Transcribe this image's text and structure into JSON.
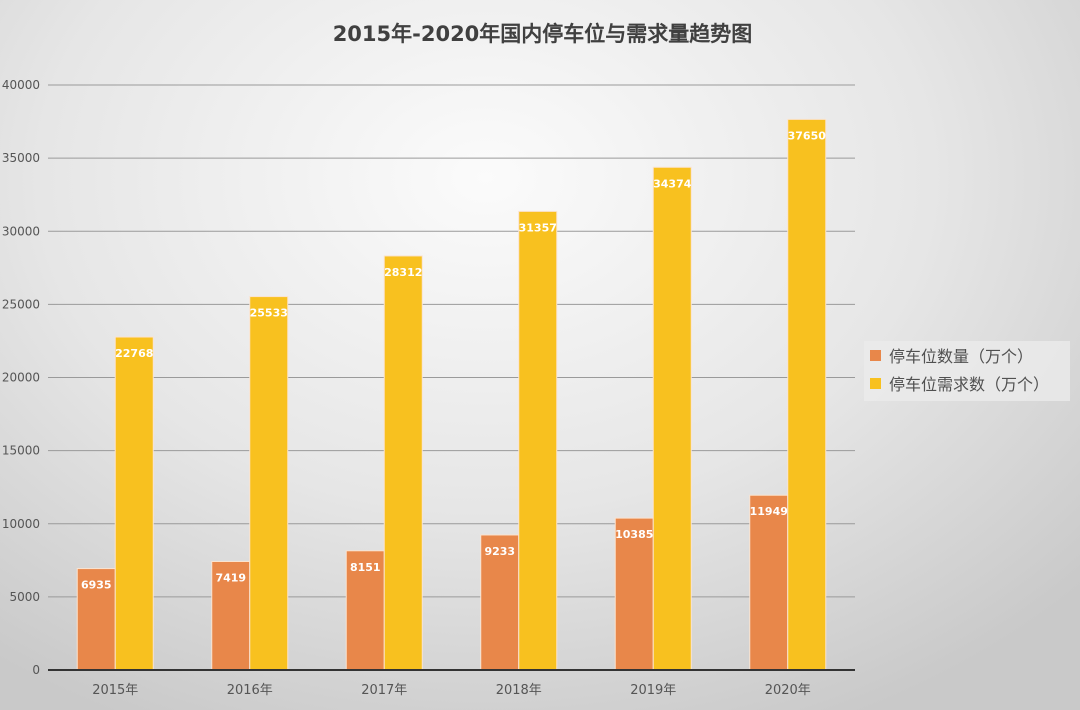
{
  "chart_data": {
    "type": "bar",
    "title": "2015年-2020年国内停车位与需求量趋势图",
    "categories": [
      "2015年",
      "2016年",
      "2017年",
      "2018年",
      "2019年",
      "2020年"
    ],
    "series": [
      {
        "name": "停车位数量（万个）",
        "color": "#e8874a",
        "values": [
          6935,
          7419,
          8151,
          9233,
          10385,
          11949
        ]
      },
      {
        "name": "停车位需求数（万个）",
        "color": "#f8c11f",
        "values": [
          22768,
          25533,
          28312,
          31357,
          34374,
          37650
        ]
      }
    ],
    "ylim": [
      0,
      40000
    ],
    "yticks": [
      0,
      5000,
      10000,
      15000,
      20000,
      25000,
      30000,
      35000,
      40000
    ],
    "grid": true,
    "legend": "right",
    "data_labels": true
  }
}
